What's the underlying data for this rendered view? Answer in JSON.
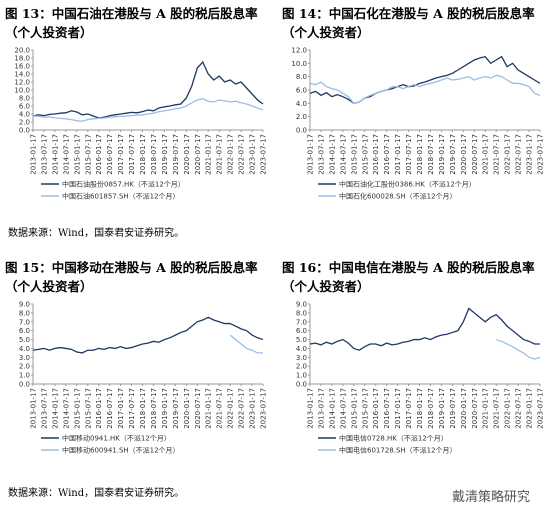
{
  "chart_data": [
    {
      "type": "line",
      "title": "图 13：中国石油在港股与 A 股的税后股息率（个人投资者）",
      "x": [
        "2013-01-17",
        "2013-04-17",
        "2013-07-17",
        "2013-10-17",
        "2014-01-17",
        "2014-04-17",
        "2014-07-17",
        "2014-10-17",
        "2015-01-17",
        "2015-04-17",
        "2015-07-17",
        "2015-10-17",
        "2016-01-17",
        "2016-04-17",
        "2016-07-17",
        "2016-10-17",
        "2017-01-17",
        "2017-04-17",
        "2017-07-17",
        "2017-10-17",
        "2018-01-17",
        "2018-04-17",
        "2018-07-17",
        "2018-10-17",
        "2019-01-17",
        "2019-04-17",
        "2019-07-17",
        "2019-10-17",
        "2020-01-17",
        "2020-04-17",
        "2020-07-17",
        "2020-10-17",
        "2021-01-17",
        "2021-04-17",
        "2021-07-17",
        "2021-10-17",
        "2022-01-17",
        "2022-04-17",
        "2022-07-17",
        "2022-10-17",
        "2023-01-17",
        "2023-04-17",
        "2023-07-17"
      ],
      "xticks": [
        "2013-01-17",
        "2013-07-17",
        "2014-01-17",
        "2014-07-17",
        "2015-01-17",
        "2015-07-17",
        "2016-01-17",
        "2016-07-17",
        "2017-01-17",
        "2017-07-17",
        "2018-01-17",
        "2018-07-17",
        "2019-01-17",
        "2019-07-17",
        "2020-01-17",
        "2020-07-17",
        "2021-01-17",
        "2021-07-17",
        "2022-01-17",
        "2022-07-17",
        "2023-01-17",
        "2023-07-17"
      ],
      "ylim": [
        0,
        20
      ],
      "yticks": [
        {
          "value": 0,
          "label": "0.0"
        },
        {
          "value": 2,
          "label": "2.0"
        },
        {
          "value": 4,
          "label": "4.0"
        },
        {
          "value": 6,
          "label": "6.0"
        },
        {
          "value": 8,
          "label": "8.0"
        },
        {
          "value": 10,
          "label": "10.0"
        },
        {
          "value": 12,
          "label": "12.0"
        },
        {
          "value": 14,
          "label": "14.0"
        },
        {
          "value": 16,
          "label": "16.0"
        },
        {
          "value": 18,
          "label": "18.0"
        },
        {
          "value": 20,
          "label": "20.0"
        }
      ],
      "series": [
        {
          "name": "中国石油股份0857.HK（不派12个月）",
          "color": "#1f3864",
          "values": [
            3.5,
            3.8,
            3.6,
            3.9,
            4.0,
            4.2,
            4.3,
            4.8,
            4.5,
            3.8,
            4.0,
            3.5,
            3.0,
            3.2,
            3.6,
            3.8,
            4.0,
            4.2,
            4.4,
            4.3,
            4.6,
            5.0,
            4.8,
            5.5,
            5.8,
            6.0,
            6.3,
            6.5,
            8.0,
            11.0,
            15.5,
            17.0,
            14.0,
            12.5,
            13.5,
            12.0,
            12.5,
            11.5,
            12.0,
            10.5,
            9.0,
            7.5,
            6.5
          ]
        },
        {
          "name": "中国石油601857.SH（不派12个月）",
          "color": "#9dbde6",
          "values": [
            3.5,
            3.4,
            3.2,
            3.3,
            3.0,
            2.9,
            2.8,
            2.6,
            2.3,
            2.2,
            2.6,
            2.8,
            2.9,
            3.0,
            3.2,
            3.3,
            3.4,
            3.5,
            3.6,
            3.7,
            3.8,
            4.0,
            4.2,
            4.6,
            4.8,
            5.0,
            5.3,
            5.5,
            6.0,
            6.8,
            7.5,
            7.8,
            7.2,
            7.0,
            7.5,
            7.3,
            7.0,
            7.2,
            6.8,
            6.5,
            6.0,
            5.5,
            5.0
          ]
        }
      ]
    },
    {
      "type": "line",
      "title": "图 14：中国石化在港股与 A 股的税后股息率（个人投资者）",
      "x": [
        "2013-01-17",
        "2013-04-17",
        "2013-07-17",
        "2013-10-17",
        "2014-01-17",
        "2014-04-17",
        "2014-07-17",
        "2014-10-17",
        "2015-01-17",
        "2015-04-17",
        "2015-07-17",
        "2015-10-17",
        "2016-01-17",
        "2016-04-17",
        "2016-07-17",
        "2016-10-17",
        "2017-01-17",
        "2017-04-17",
        "2017-07-17",
        "2017-10-17",
        "2018-01-17",
        "2018-04-17",
        "2018-07-17",
        "2018-10-17",
        "2019-01-17",
        "2019-04-17",
        "2019-07-17",
        "2019-10-17",
        "2020-01-17",
        "2020-04-17",
        "2020-07-17",
        "2020-10-17",
        "2021-01-17",
        "2021-04-17",
        "2021-07-17",
        "2021-10-17",
        "2022-01-17",
        "2022-04-17",
        "2022-07-17",
        "2022-10-17",
        "2023-01-17",
        "2023-04-17",
        "2023-07-17"
      ],
      "xticks": [
        "2013-01-17",
        "2013-07-17",
        "2014-01-17",
        "2014-07-17",
        "2015-01-17",
        "2015-07-17",
        "2016-01-17",
        "2016-07-17",
        "2017-01-17",
        "2017-07-17",
        "2018-01-17",
        "2018-07-17",
        "2019-01-17",
        "2019-07-17",
        "2020-01-17",
        "2020-07-17",
        "2021-01-17",
        "2021-07-17",
        "2022-01-17",
        "2022-07-17",
        "2023-01-17",
        "2023-07-17"
      ],
      "ylim": [
        0,
        12
      ],
      "yticks": [
        {
          "value": 0,
          "label": "0.0"
        },
        {
          "value": 2,
          "label": "2.0"
        },
        {
          "value": 4,
          "label": "4.0"
        },
        {
          "value": 6,
          "label": "6.0"
        },
        {
          "value": 8,
          "label": "8.0"
        },
        {
          "value": 10,
          "label": "10.0"
        },
        {
          "value": 12,
          "label": "12.0"
        }
      ],
      "series": [
        {
          "name": "中国石油化工股份0386.HK（不派12个月）",
          "color": "#1f3864",
          "values": [
            5.5,
            5.8,
            5.2,
            5.6,
            5.0,
            5.3,
            5.0,
            4.6,
            4.0,
            4.2,
            4.8,
            5.0,
            5.5,
            5.8,
            6.0,
            6.2,
            6.5,
            6.8,
            6.5,
            6.6,
            7.0,
            7.2,
            7.5,
            7.8,
            8.0,
            8.2,
            8.5,
            9.0,
            9.5,
            10.0,
            10.5,
            10.8,
            11.0,
            10.0,
            10.5,
            11.0,
            9.5,
            10.0,
            9.0,
            8.5,
            8.0,
            7.5,
            7.0
          ]
        },
        {
          "name": "中国石化600028.SH（不派12个月）",
          "color": "#9dbde6",
          "values": [
            7.0,
            6.8,
            7.2,
            6.5,
            6.2,
            6.0,
            5.5,
            5.0,
            4.0,
            4.2,
            4.8,
            5.2,
            5.5,
            5.8,
            6.0,
            6.5,
            6.5,
            6.2,
            6.5,
            6.8,
            6.5,
            6.8,
            7.0,
            7.2,
            7.5,
            7.8,
            7.5,
            7.6,
            7.8,
            8.0,
            7.5,
            7.8,
            8.0,
            7.8,
            8.2,
            8.0,
            7.5,
            7.0,
            7.0,
            6.8,
            6.5,
            5.5,
            5.2
          ]
        }
      ]
    },
    {
      "type": "line",
      "title": "图 15：中国移动在港股与 A 股的税后股息率（个人投资者）",
      "x": [
        "2013-01-17",
        "2013-04-17",
        "2013-07-17",
        "2013-10-17",
        "2014-01-17",
        "2014-04-17",
        "2014-07-17",
        "2014-10-17",
        "2015-01-17",
        "2015-04-17",
        "2015-07-17",
        "2015-10-17",
        "2016-01-17",
        "2016-04-17",
        "2016-07-17",
        "2016-10-17",
        "2017-01-17",
        "2017-04-17",
        "2017-07-17",
        "2017-10-17",
        "2018-01-17",
        "2018-04-17",
        "2018-07-17",
        "2018-10-17",
        "2019-01-17",
        "2019-04-17",
        "2019-07-17",
        "2019-10-17",
        "2020-01-17",
        "2020-04-17",
        "2020-07-17",
        "2020-10-17",
        "2021-01-17",
        "2021-04-17",
        "2021-07-17",
        "2021-10-17",
        "2022-01-17",
        "2022-04-17",
        "2022-07-17",
        "2022-10-17",
        "2023-01-17",
        "2023-04-17",
        "2023-07-17"
      ],
      "xticks": [
        "2013-01-17",
        "2013-07-17",
        "2014-01-17",
        "2014-07-17",
        "2015-01-17",
        "2015-07-17",
        "2016-01-17",
        "2016-07-17",
        "2017-01-17",
        "2017-07-17",
        "2018-01-17",
        "2018-07-17",
        "2019-01-17",
        "2019-07-17",
        "2020-01-17",
        "2020-07-17",
        "2021-01-17",
        "2021-07-17",
        "2022-01-17",
        "2022-07-17",
        "2023-01-17",
        "2023-07-17"
      ],
      "ylim": [
        0,
        9
      ],
      "yticks": [
        {
          "value": 0,
          "label": "0.0"
        },
        {
          "value": 1,
          "label": "1.0"
        },
        {
          "value": 2,
          "label": "2.0"
        },
        {
          "value": 3,
          "label": "3.0"
        },
        {
          "value": 4,
          "label": "4.0"
        },
        {
          "value": 5,
          "label": "5.0"
        },
        {
          "value": 6,
          "label": "6.0"
        },
        {
          "value": 7,
          "label": "7.0"
        },
        {
          "value": 8,
          "label": "8.0"
        },
        {
          "value": 9,
          "label": "9.0"
        }
      ],
      "series": [
        {
          "name": "中国移动0941.HK（不派12个月）",
          "color": "#1f3864",
          "values": [
            3.8,
            3.9,
            4.0,
            3.8,
            4.0,
            4.1,
            4.0,
            3.9,
            3.6,
            3.5,
            3.8,
            3.8,
            4.0,
            3.9,
            4.1,
            4.0,
            4.2,
            4.0,
            4.1,
            4.3,
            4.5,
            4.6,
            4.8,
            4.7,
            5.0,
            5.2,
            5.5,
            5.8,
            6.0,
            6.5,
            7.0,
            7.2,
            7.5,
            7.2,
            7.0,
            6.8,
            6.8,
            6.5,
            6.2,
            6.0,
            5.5,
            5.2,
            5.0
          ]
        },
        {
          "name": "中国移动600941.SH（不派12个月）",
          "color": "#9dbde6",
          "values": [
            null,
            null,
            null,
            null,
            null,
            null,
            null,
            null,
            null,
            null,
            null,
            null,
            null,
            null,
            null,
            null,
            null,
            null,
            null,
            null,
            null,
            null,
            null,
            null,
            null,
            null,
            null,
            null,
            null,
            null,
            null,
            null,
            null,
            null,
            null,
            null,
            5.5,
            5.0,
            4.5,
            4.0,
            3.8,
            3.5,
            3.5
          ]
        }
      ]
    },
    {
      "type": "line",
      "title": "图 16：中国电信在港股与 A 股的税后股息率（个人投资者）",
      "x": [
        "2013-01-17",
        "2013-04-17",
        "2013-07-17",
        "2013-10-17",
        "2014-01-17",
        "2014-04-17",
        "2014-07-17",
        "2014-10-17",
        "2015-01-17",
        "2015-04-17",
        "2015-07-17",
        "2015-10-17",
        "2016-01-17",
        "2016-04-17",
        "2016-07-17",
        "2016-10-17",
        "2017-01-17",
        "2017-04-17",
        "2017-07-17",
        "2017-10-17",
        "2018-01-17",
        "2018-04-17",
        "2018-07-17",
        "2018-10-17",
        "2019-01-17",
        "2019-04-17",
        "2019-07-17",
        "2019-10-17",
        "2020-01-17",
        "2020-04-17",
        "2020-07-17",
        "2020-10-17",
        "2021-01-17",
        "2021-04-17",
        "2021-07-17",
        "2021-10-17",
        "2022-01-17",
        "2022-04-17",
        "2022-07-17",
        "2022-10-17",
        "2023-01-17",
        "2023-04-17",
        "2023-07-17"
      ],
      "xticks": [
        "2013-01-17",
        "2013-07-17",
        "2014-01-17",
        "2014-07-17",
        "2015-01-17",
        "2015-07-17",
        "2016-01-17",
        "2016-07-17",
        "2017-01-17",
        "2017-07-17",
        "2018-01-17",
        "2018-07-17",
        "2019-01-17",
        "2019-07-17",
        "2020-01-17",
        "2020-07-17",
        "2021-01-17",
        "2021-07-17",
        "2022-01-17",
        "2022-07-17",
        "2023-01-17",
        "2023-07-17"
      ],
      "ylim": [
        0,
        9
      ],
      "yticks": [
        {
          "value": 0,
          "label": "0.0"
        },
        {
          "value": 1,
          "label": "1.0"
        },
        {
          "value": 2,
          "label": "2.0"
        },
        {
          "value": 3,
          "label": "3.0"
        },
        {
          "value": 4,
          "label": "4.0"
        },
        {
          "value": 5,
          "label": "5.0"
        },
        {
          "value": 6,
          "label": "6.0"
        },
        {
          "value": 7,
          "label": "7.0"
        },
        {
          "value": 8,
          "label": "8.0"
        },
        {
          "value": 9,
          "label": "9.0"
        }
      ],
      "series": [
        {
          "name": "中国电信0728.HK（不派12个月）",
          "color": "#1f3864",
          "values": [
            4.5,
            4.6,
            4.4,
            4.7,
            4.5,
            4.8,
            5.0,
            4.6,
            4.0,
            3.8,
            4.2,
            4.5,
            4.5,
            4.3,
            4.6,
            4.4,
            4.5,
            4.7,
            4.8,
            5.0,
            5.0,
            5.2,
            5.0,
            5.3,
            5.5,
            5.6,
            5.8,
            6.0,
            7.0,
            8.5,
            8.0,
            7.5,
            7.0,
            7.5,
            7.8,
            7.2,
            6.5,
            6.0,
            5.5,
            5.0,
            4.8,
            4.5,
            4.5
          ]
        },
        {
          "name": "中国电信601728.SH（不派12个月）",
          "color": "#9dbde6",
          "values": [
            null,
            null,
            null,
            null,
            null,
            null,
            null,
            null,
            null,
            null,
            null,
            null,
            null,
            null,
            null,
            null,
            null,
            null,
            null,
            null,
            null,
            null,
            null,
            null,
            null,
            null,
            null,
            null,
            null,
            null,
            null,
            null,
            null,
            null,
            5.0,
            4.8,
            4.5,
            4.2,
            3.8,
            3.5,
            3.0,
            2.8,
            3.0
          ]
        }
      ]
    }
  ],
  "sources": [
    "数据来源：Wind，国泰君安证券研究。",
    "数据来源：Wind，国泰君安证券研究。"
  ],
  "watermark": "戴清策略研究"
}
